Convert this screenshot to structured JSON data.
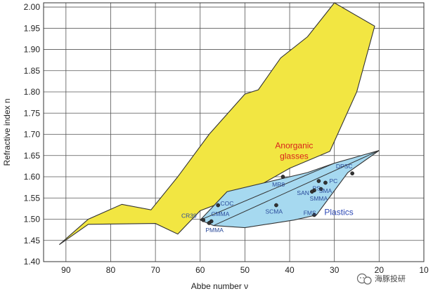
{
  "chart_data": {
    "type": "area",
    "xlabel": "Abbe number ν",
    "ylabel": "Refractive index n",
    "xlim": [
      95,
      10
    ],
    "ylim": [
      1.4,
      2.01
    ],
    "x_reversed": true,
    "grid": true,
    "x_ticks": [
      90,
      80,
      70,
      60,
      50,
      40,
      30,
      20,
      10
    ],
    "y_ticks": [
      1.4,
      1.45,
      1.5,
      1.55,
      1.6,
      1.65,
      1.7,
      1.75,
      1.8,
      1.85,
      1.9,
      1.95,
      2.0
    ],
    "y_tick_labels": [
      "1.40",
      "1.45",
      "1.50",
      "1.55",
      "1.60",
      "1.65",
      "1.70",
      "1.75",
      "1.80",
      "1.85",
      "1.90",
      "1.95",
      "2.00"
    ],
    "regions": [
      {
        "label": "Anorganic glasses",
        "label_lines": [
          "Anorganic",
          "glasses"
        ],
        "label_pos": [
          39,
          1.667
        ],
        "label_color": "#d8211c",
        "fill": "#f2e642",
        "polygon": [
          [
            91.5,
            1.44
          ],
          [
            85,
            1.5
          ],
          [
            77.5,
            1.535
          ],
          [
            71,
            1.522
          ],
          [
            65,
            1.6
          ],
          [
            58,
            1.7
          ],
          [
            50,
            1.795
          ],
          [
            47,
            1.805
          ],
          [
            42,
            1.88
          ],
          [
            36,
            1.93
          ],
          [
            30,
            2.01
          ],
          [
            21,
            1.955
          ],
          [
            25,
            1.8
          ],
          [
            31,
            1.66
          ],
          [
            40,
            1.62
          ],
          [
            50,
            1.56
          ],
          [
            60,
            1.52
          ],
          [
            65,
            1.465
          ],
          [
            70,
            1.49
          ],
          [
            85,
            1.488
          ],
          [
            91.5,
            1.44
          ]
        ]
      },
      {
        "label": "Plastics",
        "label_lines": [
          "Plastics"
        ],
        "label_pos": [
          29,
          1.51
        ],
        "label_color": "#2b47b5",
        "fill": "#a6d9f0",
        "polygon": [
          [
            60,
            1.498
          ],
          [
            54,
            1.565
          ],
          [
            36,
            1.61
          ],
          [
            30,
            1.632
          ],
          [
            20,
            1.662
          ],
          [
            27,
            1.61
          ],
          [
            34,
            1.51
          ],
          [
            39,
            1.498
          ],
          [
            50,
            1.48
          ],
          [
            57,
            1.485
          ],
          [
            60,
            1.498
          ]
        ]
      }
    ],
    "inner_lines": [
      [
        [
          60,
          1.498
        ],
        [
          30,
          1.632
        ]
      ],
      [
        [
          57,
          1.485
        ],
        [
          20,
          1.662
        ]
      ]
    ],
    "points": [
      {
        "name": "CR39",
        "x": 59.3,
        "y": 1.498,
        "label_pos": [
          62.5,
          1.508
        ],
        "label_anchor": "middle"
      },
      {
        "name": "COC",
        "x": 56,
        "y": 1.533,
        "label_pos": [
          54,
          1.537
        ],
        "label_anchor": "middle"
      },
      {
        "name": "CMMA",
        "x": 57.5,
        "y": 1.495,
        "label_pos": [
          55.5,
          1.512
        ],
        "label_anchor": "middle"
      },
      {
        "name": "PMMA",
        "x": 58.0,
        "y": 1.491,
        "label_pos": [
          56.8,
          1.474
        ],
        "label_anchor": "middle"
      },
      {
        "name": "MR8",
        "x": 41.5,
        "y": 1.6,
        "label_pos": [
          42.5,
          1.582
        ],
        "label_anchor": "middle"
      },
      {
        "name": "SCMA",
        "x": 43,
        "y": 1.533,
        "label_pos": [
          43.5,
          1.518
        ],
        "label_anchor": "middle"
      },
      {
        "name": "FMS",
        "x": 34.5,
        "y": 1.51,
        "label_pos": [
          35.5,
          1.515
        ],
        "label_anchor": "middle"
      },
      {
        "name": "PS",
        "x": 33.5,
        "y": 1.59,
        "label_pos": [
          34,
          1.573
        ],
        "label_anchor": "middle"
      },
      {
        "name": "PC",
        "x": 32,
        "y": 1.586,
        "label_pos": [
          30.2,
          1.59
        ],
        "label_anchor": "middle"
      },
      {
        "name": "SAN",
        "x": 34.5,
        "y": 1.568,
        "label_pos": [
          37,
          1.562
        ],
        "label_anchor": "middle"
      },
      {
        "name": "SMA",
        "x": 33,
        "y": 1.571,
        "label_pos": [
          32,
          1.567
        ],
        "label_anchor": "middle"
      },
      {
        "name": "SMMA",
        "x": 35,
        "y": 1.565,
        "label_pos": [
          33.5,
          1.549
        ],
        "label_anchor": "middle"
      },
      {
        "name": "DPSC",
        "x": 26,
        "y": 1.608,
        "label_pos": [
          27.8,
          1.625
        ],
        "label_anchor": "middle"
      }
    ]
  },
  "watermark": {
    "text": "海豚投研",
    "icon": "chat-bubble-icon"
  }
}
